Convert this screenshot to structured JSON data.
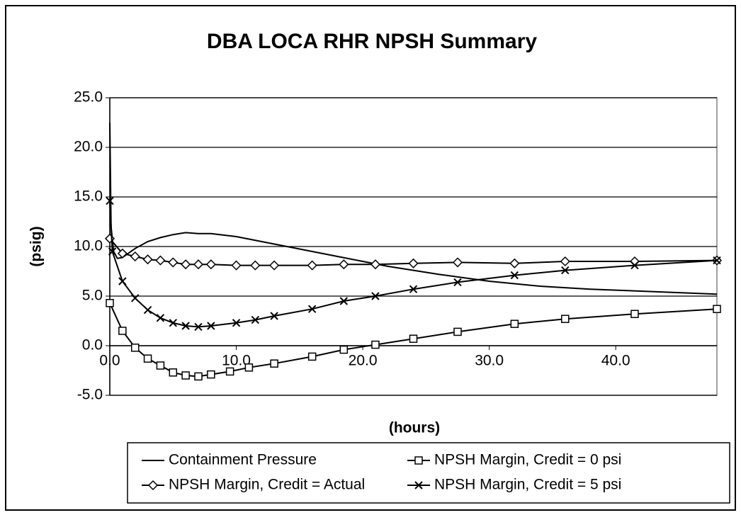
{
  "chart_data": {
    "type": "line",
    "title": "DBA LOCA RHR NPSH Summary",
    "x_label": "(hours)",
    "y_label": "(psig)",
    "xlim": [
      0,
      48
    ],
    "xticks": [
      {
        "value": 0,
        "label": "0.0"
      },
      {
        "value": 10,
        "label": "10.0"
      },
      {
        "value": 20,
        "label": "20.0"
      },
      {
        "value": 30,
        "label": "30.0"
      },
      {
        "value": 40,
        "label": "40.0"
      }
    ],
    "ylim": [
      -5,
      25
    ],
    "yticks": [
      {
        "value": -5,
        "label": "-5.0"
      },
      {
        "value": 0,
        "label": "0.0"
      },
      {
        "value": 5,
        "label": "5.0"
      },
      {
        "value": 10,
        "label": "10.0"
      },
      {
        "value": 15,
        "label": "15.0"
      },
      {
        "value": 20,
        "label": "20.0"
      },
      {
        "value": 25,
        "label": "25.0"
      }
    ],
    "grid": true,
    "legend": "bottom",
    "series": [
      {
        "name": "Containment Pressure",
        "color": "#000000",
        "marker": "none",
        "x": [
          0,
          0.1,
          0.3,
          0.6,
          1,
          2,
          3,
          4,
          5,
          6,
          7,
          8,
          10,
          12,
          14,
          18,
          22,
          26,
          30,
          34,
          38,
          42,
          48
        ],
        "values": [
          22.5,
          12,
          9.5,
          8.8,
          8.9,
          9.8,
          10.5,
          10.9,
          11.2,
          11.4,
          11.3,
          11.3,
          11,
          10.5,
          10,
          9,
          8,
          7.2,
          6.5,
          6,
          5.7,
          5.5,
          5.2
        ]
      },
      {
        "name": "NPSH Margin, Credit = 0 psi",
        "color": "#000000",
        "marker": "square",
        "x": [
          0,
          1,
          2,
          3,
          4,
          5,
          6,
          7,
          8,
          9.5,
          11,
          13,
          16,
          18.5,
          21,
          24,
          27.5,
          32,
          36,
          41.5,
          48
        ],
        "values": [
          4.3,
          1.5,
          -0.2,
          -1.3,
          -2,
          -2.7,
          -3,
          -3.1,
          -2.9,
          -2.6,
          -2.2,
          -1.8,
          -1.1,
          -0.4,
          0.1,
          0.7,
          1.4,
          2.2,
          2.7,
          3.2,
          3.7
        ]
      },
      {
        "name": "NPSH Margin, Credit = Actual",
        "color": "#000000",
        "marker": "diamond",
        "x": [
          0,
          1,
          2,
          3,
          4,
          5,
          6,
          7,
          8,
          10,
          11.5,
          13,
          16,
          18.5,
          21,
          24,
          27.5,
          32,
          36,
          41.5,
          48
        ],
        "values": [
          10.8,
          9.3,
          9,
          8.7,
          8.6,
          8.4,
          8.2,
          8.2,
          8.2,
          8.1,
          8.1,
          8.1,
          8.1,
          8.2,
          8.2,
          8.3,
          8.4,
          8.3,
          8.5,
          8.5,
          8.6
        ]
      },
      {
        "name": "NPSH Margin, Credit = 5 psi",
        "color": "#000000",
        "marker": "cross",
        "x": [
          0,
          0.2,
          1,
          2,
          3,
          4,
          5,
          6,
          7,
          8,
          10,
          11.5,
          13,
          16,
          18.5,
          21,
          24,
          27.5,
          32,
          36,
          41.5,
          48
        ],
        "values": [
          14.6,
          9.5,
          6.5,
          4.8,
          3.6,
          2.8,
          2.3,
          2,
          1.9,
          2,
          2.3,
          2.6,
          3,
          3.7,
          4.5,
          5,
          5.7,
          6.4,
          7.1,
          7.6,
          8.1,
          8.6
        ]
      }
    ]
  }
}
